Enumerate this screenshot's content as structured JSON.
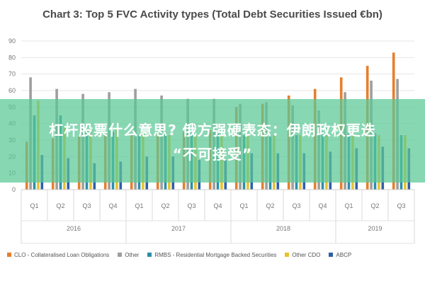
{
  "chart_data": {
    "type": "bar",
    "title": "Chart 3: Top 5 FVC Activity types (Total Debt Securities Issued €bn)",
    "quarters": [
      "Q1",
      "Q2",
      "Q3",
      "Q4",
      "Q1",
      "Q2",
      "Q3",
      "Q4",
      "Q1",
      "Q2",
      "Q3",
      "Q4",
      "Q1",
      "Q2",
      "Q3"
    ],
    "years": [
      {
        "label": "2016",
        "span": 4
      },
      {
        "label": "2017",
        "span": 4
      },
      {
        "label": "2018",
        "span": 4
      },
      {
        "label": "2019",
        "span": 3
      }
    ],
    "yticks": [
      0,
      10,
      20,
      30,
      40,
      50,
      60,
      70,
      80,
      90
    ],
    "ylim": [
      0,
      90
    ],
    "series": [
      {
        "name": "CLO - Collateralised Loan Obligations",
        "color": "#e57f2e",
        "values": [
          29,
          31,
          32,
          33,
          33,
          34,
          35,
          36,
          50,
          52,
          57,
          61,
          68,
          75,
          83
        ]
      },
      {
        "name": "Other",
        "color": "#9e9e9e",
        "values": [
          68,
          61,
          58,
          59,
          61,
          57,
          55,
          55,
          52,
          53,
          51,
          48,
          59,
          66,
          67
        ]
      },
      {
        "name": "RMBS - Residential Mortgage Backed Securities",
        "color": "#2a8fa8",
        "values": [
          45,
          45,
          36,
          35,
          33,
          34,
          34,
          34,
          33,
          32,
          33,
          34,
          34,
          34,
          33
        ]
      },
      {
        "name": "Other CDO",
        "color": "#e8c22e",
        "values": [
          54,
          38,
          37,
          37,
          35,
          33,
          33,
          33,
          33,
          33,
          33,
          33,
          33,
          33,
          33
        ]
      },
      {
        "name": "ABCP",
        "color": "#2f5fa8",
        "values": [
          21,
          19,
          16,
          17,
          20,
          20,
          18,
          18,
          22,
          22,
          22,
          23,
          25,
          26,
          25
        ]
      }
    ]
  },
  "overlay": {
    "line1": "杠杆股票什么意思? 俄方强硬表态：伊朗政权更迭",
    "line2": "“不可接受”"
  },
  "colors": {
    "grid": "#e6e6e6",
    "axis_text": "#777777",
    "overlay": "#5ac896"
  }
}
